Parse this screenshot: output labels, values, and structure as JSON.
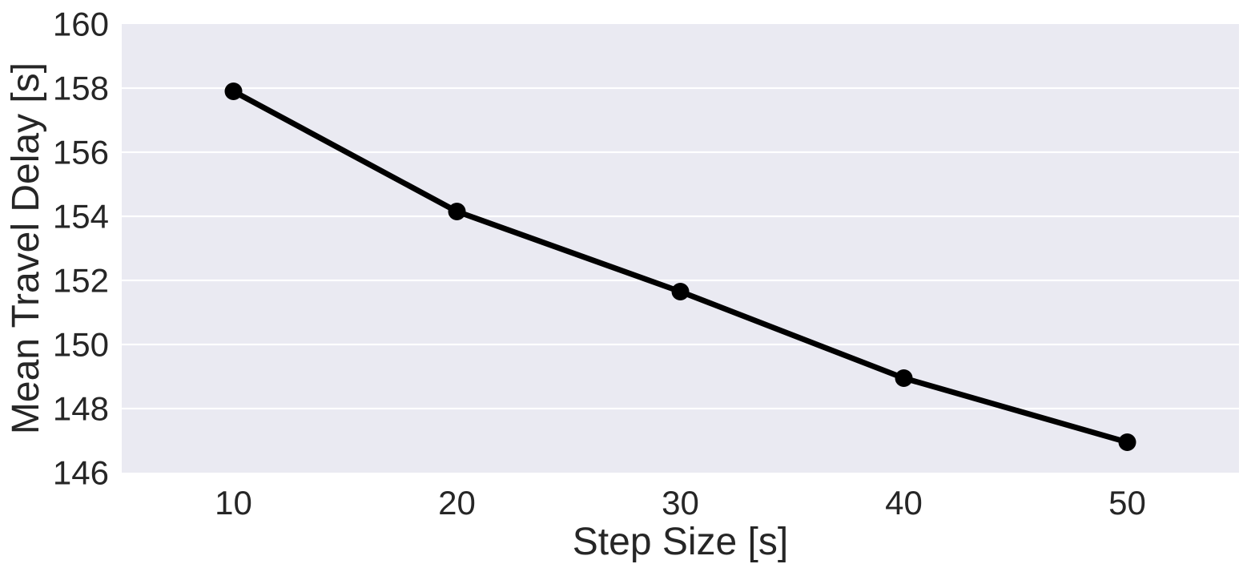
{
  "chart_data": {
    "type": "line",
    "title": "",
    "xlabel": "Step Size [s]",
    "ylabel": "Mean Travel Delay [s]",
    "xlim": [
      5,
      55
    ],
    "ylim": [
      146,
      160
    ],
    "xticks": [
      10,
      20,
      30,
      40,
      50
    ],
    "yticks": [
      146,
      148,
      150,
      152,
      154,
      156,
      158,
      160
    ],
    "grid": "horizontal",
    "background_color": "#eaeaf2",
    "grid_color": "#ffffff",
    "series": [
      {
        "color": "#000000",
        "marker": "circle",
        "x": [
          10,
          20,
          30,
          40,
          50
        ],
        "y": [
          157.9,
          154.15,
          151.65,
          148.95,
          146.95
        ]
      }
    ]
  }
}
